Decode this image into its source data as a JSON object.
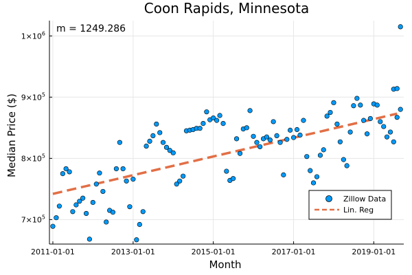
{
  "chart_data": {
    "type": "scatter",
    "title": "Coon Rapids, Minnesota",
    "xlabel": "Month",
    "ylabel": "Median Price ($)",
    "annotation": "m = 1249.286",
    "x_is_date": true,
    "xlim": [
      "2010-12-01",
      "2019-10-01"
    ],
    "ylim": [
      660000,
      1025000
    ],
    "xticks": [
      "2011-01-01",
      "2013-01-01",
      "2015-01-01",
      "2017-01-01",
      "2019-01-01"
    ],
    "yticks": [
      {
        "value": 700000,
        "mantissa": "7",
        "exponent": "5"
      },
      {
        "value": 800000,
        "mantissa": "8",
        "exponent": "5"
      },
      {
        "value": 900000,
        "mantissa": "9",
        "exponent": "5"
      },
      {
        "value": 1000000,
        "mantissa": "1",
        "exponent": "6"
      }
    ],
    "grid": true,
    "legend_position": "bottom-right",
    "series": [
      {
        "name": "Zillow Data",
        "kind": "scatter",
        "color": "#009AF9",
        "x": [
          "2011-01-01",
          "2011-02-01",
          "2011-03-01",
          "2011-04-01",
          "2011-05-01",
          "2011-06-01",
          "2011-07-01",
          "2011-08-01",
          "2011-09-01",
          "2011-10-01",
          "2011-11-01",
          "2011-12-01",
          "2012-01-01",
          "2012-02-01",
          "2012-03-01",
          "2012-04-01",
          "2012-05-01",
          "2012-06-01",
          "2012-07-01",
          "2012-08-01",
          "2012-09-01",
          "2012-10-01",
          "2012-11-01",
          "2012-12-01",
          "2013-01-01",
          "2013-02-01",
          "2013-03-01",
          "2013-04-01",
          "2013-05-01",
          "2013-06-01",
          "2013-07-01",
          "2013-08-01",
          "2013-09-01",
          "2013-10-01",
          "2013-11-01",
          "2013-12-01",
          "2014-01-01",
          "2014-02-01",
          "2014-03-01",
          "2014-04-01",
          "2014-05-01",
          "2014-06-01",
          "2014-07-01",
          "2014-08-01",
          "2014-09-01",
          "2014-10-01",
          "2014-11-01",
          "2014-12-01",
          "2015-01-01",
          "2015-02-01",
          "2015-03-01",
          "2015-04-01",
          "2015-05-01",
          "2015-06-01",
          "2015-07-01",
          "2015-08-01",
          "2015-09-01",
          "2015-10-01",
          "2015-11-01",
          "2015-12-01",
          "2016-01-01",
          "2016-02-01",
          "2016-03-01",
          "2016-04-01",
          "2016-05-01",
          "2016-06-01",
          "2016-07-01",
          "2016-08-01",
          "2016-09-01",
          "2016-10-01",
          "2016-11-01",
          "2016-12-01",
          "2017-01-01",
          "2017-02-01",
          "2017-03-01",
          "2017-04-01",
          "2017-05-01",
          "2017-06-01",
          "2017-07-01",
          "2017-08-01",
          "2017-09-01",
          "2017-10-01",
          "2017-11-01",
          "2017-12-01",
          "2018-01-01",
          "2018-02-01",
          "2018-03-01",
          "2018-04-01",
          "2018-05-01",
          "2018-06-01",
          "2018-07-01",
          "2018-08-01",
          "2018-09-01",
          "2018-10-01",
          "2018-11-01",
          "2018-12-01",
          "2019-01-01",
          "2019-02-01",
          "2019-03-01",
          "2019-04-01",
          "2019-05-01",
          "2019-06-01",
          "2019-07-01",
          "2019-08-01",
          "2019-09-01"
        ],
        "y": [
          689000,
          703000,
          722000,
          775000,
          783000,
          778000,
          713000,
          724000,
          730000,
          735000,
          710000,
          668000,
          728000,
          758000,
          776000,
          746000,
          696000,
          715000,
          712000,
          783000,
          826000,
          783000,
          763000,
          721000,
          766000,
          667000,
          692000,
          713000,
          820000,
          828000,
          837000,
          856000,
          842000,
          826000,
          818000,
          813000,
          809000,
          758000,
          763000,
          771000,
          845000,
          846000,
          847000,
          849000,
          849000,
          857000,
          876000,
          863000,
          866000,
          862000,
          870000,
          857000,
          779000,
          764000,
          767000,
          832000,
          808000,
          848000,
          850000,
          878000,
          836000,
          826000,
          819000,
          832000,
          835000,
          830000,
          860000,
          837000,
          826000,
          773000,
          831000,
          846000,
          834000,
          847000,
          838000,
          862000,
          803000,
          780000,
          760000,
          770000,
          805000,
          814000,
          869000,
          875000,
          891000,
          856000,
          827000,
          798000,
          788000,
          843000,
          886000,
          898000,
          887000,
          862000,
          840000,
          865000,
          889000,
          887000,
          860000,
          852000,
          835000,
          843000,
          827000,
          867000,
          880000
        ],
        "extra_points": [
          {
            "x": "2019-07-01",
            "y": 913000
          },
          {
            "x": "2019-08-01",
            "y": 914000
          },
          {
            "x": "2019-09-01",
            "y": 1015000
          }
        ]
      },
      {
        "name": "Lin. Reg",
        "kind": "line",
        "style": "dashed",
        "color": "#E26F46",
        "x": [
          "2011-01-01",
          "2019-08-01"
        ],
        "y": [
          742000,
          873000
        ]
      }
    ]
  }
}
